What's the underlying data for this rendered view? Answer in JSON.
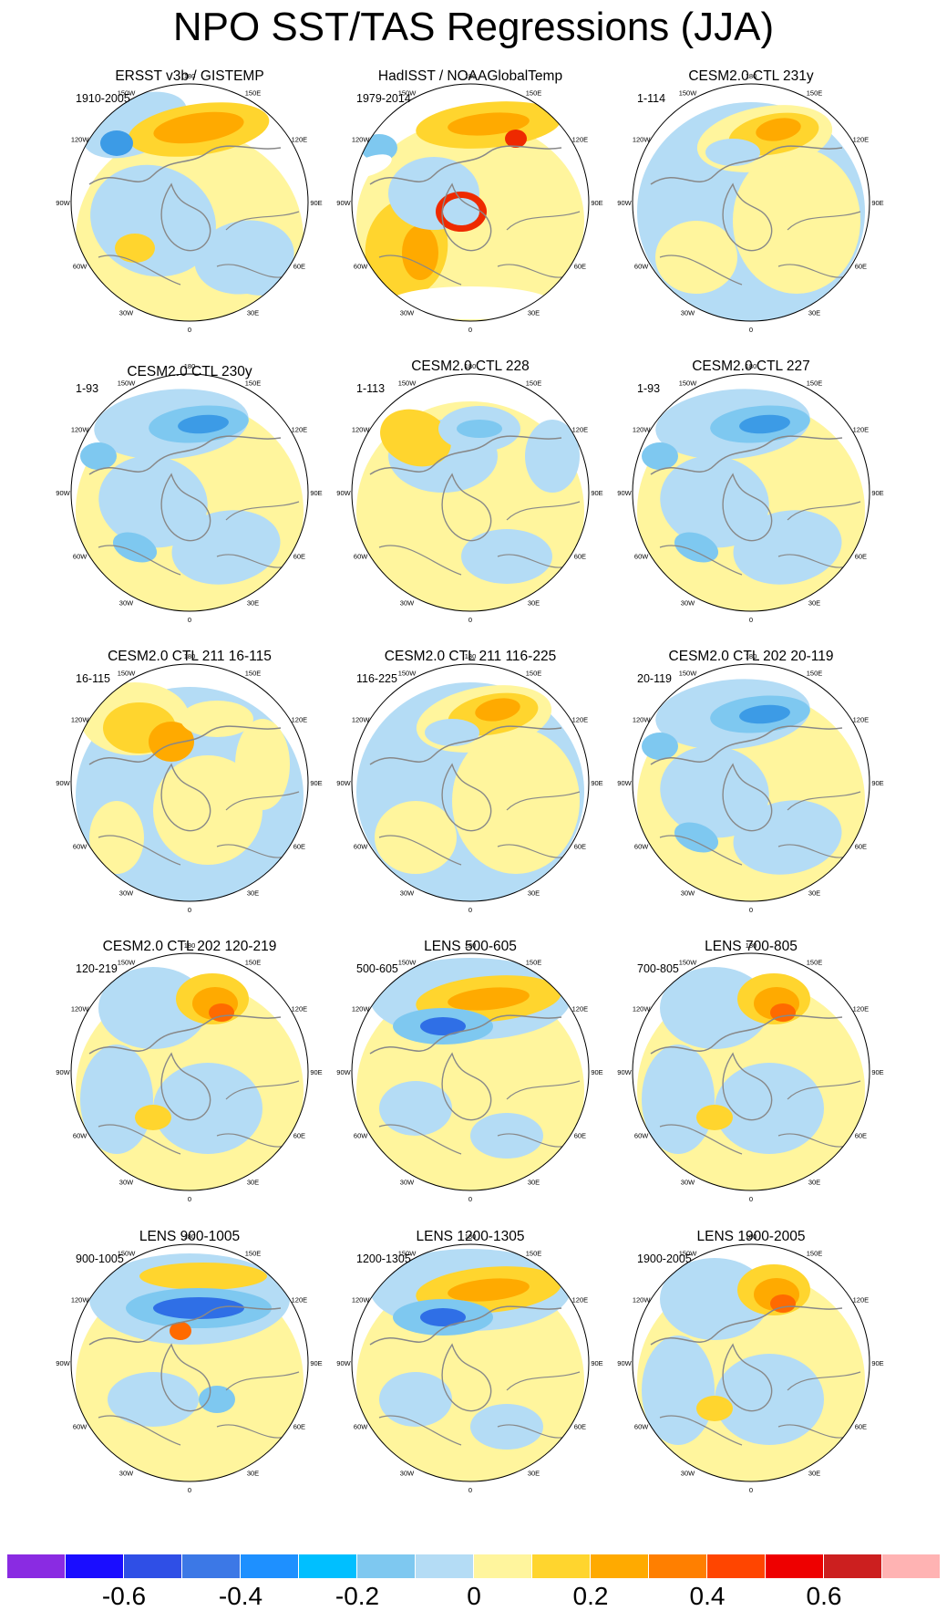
{
  "title": "NPO SST/TAS Regressions (JJA)",
  "lon_labels": [
    "180",
    "150E",
    "120E",
    "90E",
    "60E",
    "30E",
    "0",
    "30W",
    "60W",
    "90W",
    "120W",
    "150W"
  ],
  "panels": [
    {
      "title": "ERSST v3b / GISTEMP",
      "period": "1910-2005",
      "pattern": "obs1"
    },
    {
      "title": "HadISST / NOAAGlobalTemp",
      "period": "1979-2014",
      "pattern": "obs2"
    },
    {
      "title": "CESM2.0 CTL 231y",
      "period": "1-114",
      "pattern": "warm-north"
    },
    {
      "title": "CESM2.0 CTL 230y",
      "period": "1-93",
      "pattern": "cool-north"
    },
    {
      "title": "CESM2.0 CTL 228",
      "period": "1-113",
      "pattern": "mixed"
    },
    {
      "title": "CESM2.0 CTL 227",
      "period": "1-93",
      "pattern": "cool-north"
    },
    {
      "title": "CESM2.0 CTL 211 16-115",
      "period": "16-115",
      "pattern": "warm-nw"
    },
    {
      "title": "CESM2.0 CTL 211 116-225",
      "period": "116-225",
      "pattern": "warm-north"
    },
    {
      "title": "CESM2.0 CTL 202 20-119",
      "period": "20-119",
      "pattern": "cool-north"
    },
    {
      "title": "CESM2.0 CTL 202 120-219",
      "period": "120-219",
      "pattern": "warm-ne"
    },
    {
      "title": "LENS 500-605",
      "period": "500-605",
      "pattern": "dipole"
    },
    {
      "title": "LENS 700-805",
      "period": "700-805",
      "pattern": "warm-ne"
    },
    {
      "title": "LENS 900-1005",
      "period": "900-1005",
      "pattern": "dipole-cool"
    },
    {
      "title": "LENS 1200-1305",
      "period": "1200-1305",
      "pattern": "dipole"
    },
    {
      "title": "LENS 1900-2005",
      "period": "1900-2005",
      "pattern": "warm-ne"
    }
  ],
  "colorbar": {
    "colors": [
      "#8a2be2",
      "#1a0dff",
      "#2f4fe6",
      "#3c78e6",
      "#1e90ff",
      "#00bfff",
      "#7ec8f0",
      "#b4dcf5",
      "#fff59d",
      "#ffd52e",
      "#ffaa00",
      "#ff7f00",
      "#ff4500",
      "#ee0000",
      "#cc1f1f",
      "#ffb3b3"
    ],
    "ticks": [
      "-0.6",
      "-0.4",
      "-0.2",
      "0",
      "0.2",
      "0.4",
      "0.6"
    ]
  },
  "palette": {
    "base_warm": "#fff59d",
    "base_cool": "#b4dcf5",
    "mid_cool": "#7ec8f0",
    "strong_cool": "#3c9be6",
    "deep_cool": "#2f6fe6",
    "mid_warm": "#ffd52e",
    "strong_warm": "#ffaa00",
    "hot": "#ff6a00",
    "red": "#ee2a00",
    "land_line": "#888888"
  }
}
